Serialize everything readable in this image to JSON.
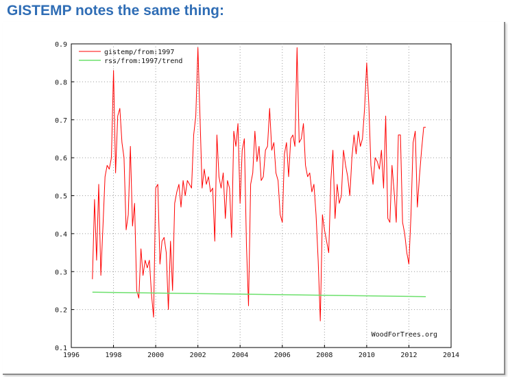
{
  "slide": {
    "title": "GISTEMP notes the same thing:"
  },
  "chart_data": {
    "type": "line",
    "title": "",
    "xlabel": "",
    "ylabel": "",
    "xlim": [
      1996,
      2014
    ],
    "ylim": [
      0.1,
      0.9
    ],
    "grid": true,
    "legend_position": "top-left",
    "watermark": "WoodForTrees.org",
    "x_ticks": [
      1996,
      1998,
      2000,
      2002,
      2004,
      2006,
      2008,
      2010,
      2012,
      2014
    ],
    "y_ticks": [
      0.1,
      0.2,
      0.3,
      0.4,
      0.5,
      0.6,
      0.7,
      0.8,
      0.9
    ],
    "x_tick_labels": [
      "1996",
      "1998",
      "2000",
      "2002",
      "2004",
      "2006",
      "2008",
      "2010",
      "2012",
      "2014"
    ],
    "y_tick_labels": [
      "0.1",
      "0.2",
      "0.3",
      "0.4",
      "0.5",
      "0.6",
      "0.7",
      "0.8",
      "0.9"
    ],
    "series": [
      {
        "name": "gistemp/from:1997",
        "color": "#ff0000",
        "x": [
          1997.0,
          1997.1,
          1997.2,
          1997.3,
          1997.4,
          1997.5,
          1997.6,
          1997.7,
          1997.8,
          1997.9,
          1998.0,
          1998.1,
          1998.2,
          1998.3,
          1998.4,
          1998.5,
          1998.6,
          1998.7,
          1998.8,
          1998.9,
          1999.0,
          1999.1,
          1999.2,
          1999.3,
          1999.4,
          1999.5,
          1999.6,
          1999.7,
          1999.8,
          1999.9,
          2000.0,
          2000.1,
          2000.2,
          2000.3,
          2000.4,
          2000.5,
          2000.6,
          2000.7,
          2000.8,
          2000.9,
          2001.0,
          2001.1,
          2001.2,
          2001.3,
          2001.4,
          2001.5,
          2001.6,
          2001.7,
          2001.8,
          2001.9,
          2002.0,
          2002.1,
          2002.2,
          2002.3,
          2002.4,
          2002.5,
          2002.6,
          2002.7,
          2002.8,
          2002.9,
          2003.0,
          2003.1,
          2003.2,
          2003.3,
          2003.4,
          2003.5,
          2003.6,
          2003.7,
          2003.8,
          2003.9,
          2004.0,
          2004.1,
          2004.2,
          2004.3,
          2004.4,
          2004.5,
          2004.6,
          2004.7,
          2004.8,
          2004.9,
          2005.0,
          2005.1,
          2005.2,
          2005.3,
          2005.4,
          2005.5,
          2005.6,
          2005.7,
          2005.8,
          2005.9,
          2006.0,
          2006.1,
          2006.2,
          2006.3,
          2006.4,
          2006.5,
          2006.6,
          2006.7,
          2006.8,
          2006.9,
          2007.0,
          2007.1,
          2007.2,
          2007.3,
          2007.4,
          2007.5,
          2007.6,
          2007.7,
          2007.8,
          2007.9,
          2008.0,
          2008.1,
          2008.2,
          2008.3,
          2008.4,
          2008.5,
          2008.6,
          2008.7,
          2008.8,
          2008.9,
          2009.0,
          2009.1,
          2009.2,
          2009.3,
          2009.4,
          2009.5,
          2009.6,
          2009.7,
          2009.8,
          2009.9,
          2010.0,
          2010.1,
          2010.2,
          2010.3,
          2010.4,
          2010.5,
          2010.6,
          2010.7,
          2010.8,
          2010.9,
          2011.0,
          2011.1,
          2011.2,
          2011.3,
          2011.4,
          2011.5,
          2011.6,
          2011.7,
          2011.8,
          2011.9,
          2012.0,
          2012.1,
          2012.2,
          2012.3,
          2012.4,
          2012.5,
          2012.6,
          2012.7,
          2012.8
        ],
        "values": [
          0.28,
          0.49,
          0.33,
          0.53,
          0.29,
          0.42,
          0.55,
          0.58,
          0.57,
          0.6,
          0.83,
          0.56,
          0.71,
          0.73,
          0.64,
          0.6,
          0.41,
          0.45,
          0.63,
          0.42,
          0.48,
          0.25,
          0.23,
          0.36,
          0.29,
          0.33,
          0.31,
          0.33,
          0.24,
          0.18,
          0.52,
          0.53,
          0.32,
          0.38,
          0.39,
          0.35,
          0.2,
          0.38,
          0.25,
          0.48,
          0.51,
          0.53,
          0.47,
          0.54,
          0.5,
          0.54,
          0.53,
          0.52,
          0.66,
          0.71,
          0.89,
          0.71,
          0.52,
          0.57,
          0.53,
          0.55,
          0.51,
          0.52,
          0.38,
          0.66,
          0.55,
          0.52,
          0.56,
          0.44,
          0.54,
          0.52,
          0.39,
          0.67,
          0.63,
          0.69,
          0.48,
          0.62,
          0.65,
          0.37,
          0.21,
          0.53,
          0.56,
          0.67,
          0.59,
          0.63,
          0.54,
          0.55,
          0.62,
          0.63,
          0.73,
          0.62,
          0.64,
          0.56,
          0.54,
          0.45,
          0.43,
          0.61,
          0.64,
          0.55,
          0.65,
          0.66,
          0.63,
          0.89,
          0.64,
          0.65,
          0.69,
          0.58,
          0.55,
          0.56,
          0.51,
          0.53,
          0.45,
          0.33,
          0.17,
          0.45,
          0.41,
          0.38,
          0.35,
          0.54,
          0.62,
          0.44,
          0.53,
          0.48,
          0.5,
          0.62,
          0.58,
          0.55,
          0.5,
          0.6,
          0.66,
          0.61,
          0.67,
          0.63,
          0.65,
          0.73,
          0.85,
          0.74,
          0.58,
          0.53,
          0.6,
          0.59,
          0.57,
          0.62,
          0.52,
          0.71,
          0.44,
          0.43,
          0.58,
          0.51,
          0.43,
          0.66,
          0.66,
          0.43,
          0.4,
          0.35,
          0.32,
          0.45,
          0.64,
          0.67,
          0.47,
          0.55,
          0.62,
          0.68,
          0.68
        ]
      },
      {
        "name": "rss/from:1997/trend",
        "color": "#6be06b",
        "x": [
          1997.0,
          2012.8
        ],
        "values": [
          0.246,
          0.234
        ]
      }
    ]
  }
}
